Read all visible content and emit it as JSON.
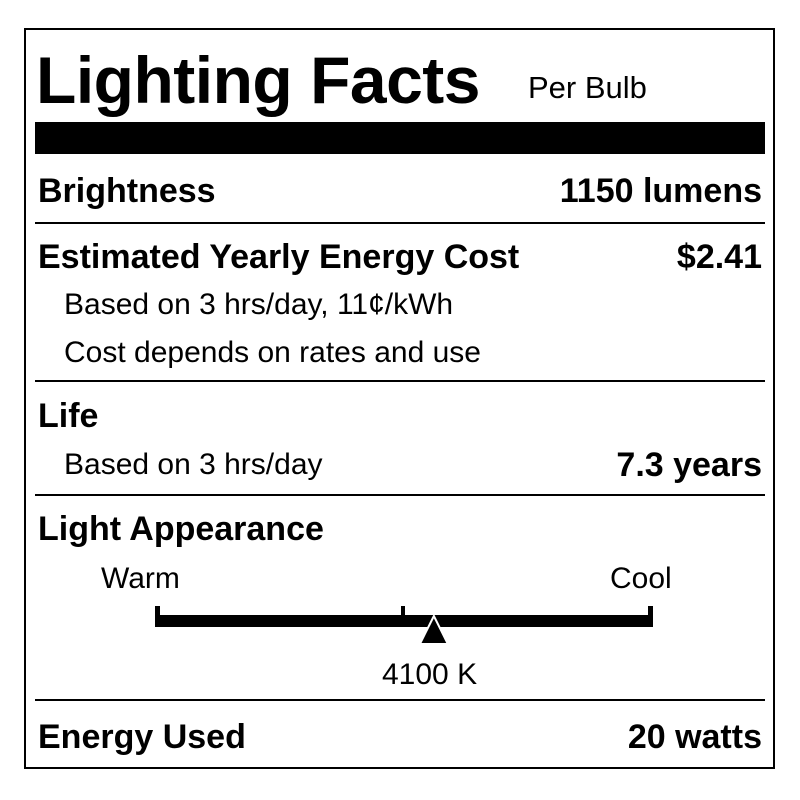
{
  "header": {
    "title": "Lighting Facts",
    "subtitle": "Per Bulb"
  },
  "brightness": {
    "label": "Brightness",
    "value": "1150 lumens"
  },
  "cost": {
    "label": "Estimated Yearly Energy Cost",
    "value": "$2.41",
    "note1": "Based on 3 hrs/day, 11¢/kWh",
    "note2": "Cost depends on rates and use"
  },
  "life": {
    "label": "Life",
    "note": "Based on 3 hrs/day",
    "value": "7.3 years"
  },
  "appearance": {
    "label": "Light Appearance",
    "warm": "Warm",
    "cool": "Cool",
    "value": "4100 K",
    "marker_fraction": 0.56
  },
  "energy": {
    "label": "Energy Used",
    "value": "20 watts"
  }
}
